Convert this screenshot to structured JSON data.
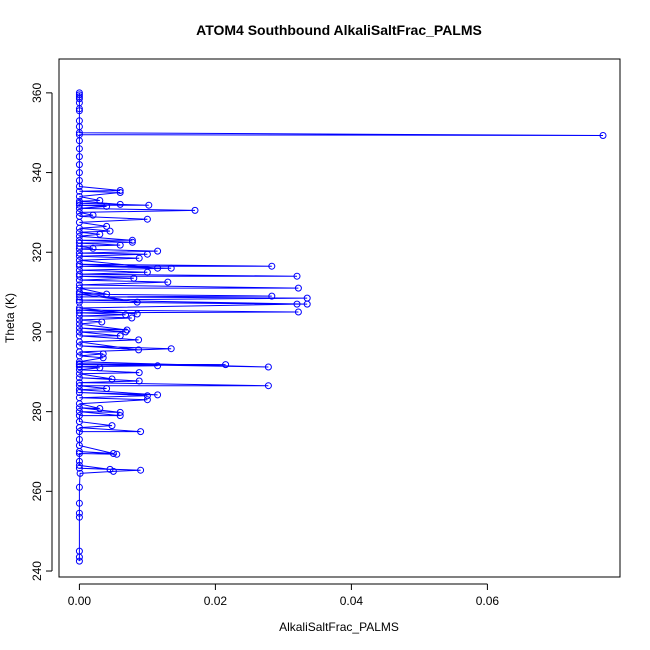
{
  "chart_data": {
    "type": "line",
    "title": "ATOM4 Southbound AlkaliSaltFrac_PALMS",
    "xlabel": "AlkaliSaltFrac_PALMS",
    "ylabel": "Theta (K)",
    "xlim": [
      -0.003,
      0.0795
    ],
    "ylim": [
      238.5,
      368.5
    ],
    "xticks": [
      0.0,
      0.02,
      0.04,
      0.06
    ],
    "xtick_labels": [
      "0.00",
      "0.02",
      "0.04",
      "0.06"
    ],
    "yticks": [
      240,
      260,
      280,
      300,
      320,
      340,
      360
    ],
    "ytick_labels": [
      "240",
      "260",
      "280",
      "300",
      "320",
      "340",
      "360"
    ],
    "grid": false,
    "legend": "none",
    "series": [
      {
        "color": "#0000ff",
        "marker": "open-circle",
        "points": [
          [
            0.0,
            242.5
          ],
          [
            0.0,
            243.5
          ],
          [
            0.0,
            245.0
          ],
          [
            0.0,
            253.5
          ],
          [
            0.0,
            254.5
          ],
          [
            0.0,
            257.0
          ],
          [
            0.0,
            261.0
          ],
          [
            0.0001,
            264.5
          ],
          [
            0.005,
            265.0
          ],
          [
            0.009,
            265.3
          ],
          [
            0.0,
            265.8
          ],
          [
            0.0045,
            265.5
          ],
          [
            0.0,
            266.5
          ],
          [
            0.0,
            267.5
          ],
          [
            0.0,
            269.5
          ],
          [
            0.0055,
            269.3
          ],
          [
            0.0,
            270.0
          ],
          [
            0.005,
            269.5
          ],
          [
            0.0,
            271.5
          ],
          [
            0.0,
            273.0
          ],
          [
            0.0,
            275.0
          ],
          [
            0.009,
            275.0
          ],
          [
            0.0,
            276.0
          ],
          [
            0.0048,
            276.5
          ],
          [
            0.0,
            277.5
          ],
          [
            0.0,
            279.0
          ],
          [
            0.006,
            279.0
          ],
          [
            0.0,
            280.0
          ],
          [
            0.006,
            279.8
          ],
          [
            0.0,
            281.0
          ],
          [
            0.003,
            280.8
          ],
          [
            0.0,
            282.0
          ],
          [
            0.01,
            283.0
          ],
          [
            0.0,
            283.5
          ],
          [
            0.01,
            284.0
          ],
          [
            0.0,
            284.8
          ],
          [
            0.0115,
            284.2
          ],
          [
            0.0,
            285.5
          ],
          [
            0.004,
            285.8
          ],
          [
            0.0,
            286.5
          ],
          [
            0.0278,
            286.5
          ],
          [
            0.0,
            287.3
          ],
          [
            0.0088,
            287.7
          ],
          [
            0.0,
            288.5
          ],
          [
            0.0048,
            288.2
          ],
          [
            0.0,
            289.5
          ],
          [
            0.0088,
            289.8
          ],
          [
            0.0,
            290.5
          ],
          [
            0.003,
            291.0
          ],
          [
            0.0,
            291.3
          ],
          [
            0.0115,
            291.5
          ],
          [
            0.0,
            291.8
          ],
          [
            0.0215,
            291.8
          ],
          [
            0.0,
            292.0
          ],
          [
            0.0278,
            291.2
          ],
          [
            0.0,
            292.5
          ],
          [
            0.0035,
            293.5
          ],
          [
            0.0,
            294.0
          ],
          [
            0.0035,
            294.5
          ],
          [
            0.0,
            295.0
          ],
          [
            0.0135,
            295.8
          ],
          [
            0.0,
            296.5
          ],
          [
            0.0087,
            295.5
          ],
          [
            0.0,
            297.5
          ],
          [
            0.0087,
            298.0
          ],
          [
            0.0,
            299.0
          ],
          [
            0.006,
            299.0
          ],
          [
            0.0,
            300.0
          ],
          [
            0.0068,
            300.0
          ],
          [
            0.0,
            301.0
          ],
          [
            0.007,
            300.5
          ],
          [
            0.0,
            302.0
          ],
          [
            0.0033,
            302.5
          ],
          [
            0.0,
            303.0
          ],
          [
            0.0077,
            303.5
          ],
          [
            0.0,
            304.0
          ],
          [
            0.0068,
            304.3
          ],
          [
            0.0,
            304.8
          ],
          [
            0.0322,
            305.0
          ],
          [
            0.0,
            305.5
          ],
          [
            0.0085,
            304.5
          ],
          [
            0.0,
            306.0
          ],
          [
            0.032,
            307.0
          ],
          [
            0.0,
            307.5
          ],
          [
            0.0335,
            307.0
          ],
          [
            0.0,
            308.0
          ],
          [
            0.0335,
            308.5
          ],
          [
            0.0,
            308.8
          ],
          [
            0.0283,
            309.0
          ],
          [
            0.0,
            309.5
          ],
          [
            0.0085,
            307.5
          ],
          [
            0.0,
            310.0
          ],
          [
            0.004,
            309.5
          ],
          [
            0.0,
            311.0
          ],
          [
            0.0322,
            311.0
          ],
          [
            0.0,
            311.8
          ],
          [
            0.013,
            312.5
          ],
          [
            0.0,
            313.0
          ],
          [
            0.008,
            313.5
          ],
          [
            0.0,
            314.0
          ],
          [
            0.032,
            314.0
          ],
          [
            0.0,
            314.5
          ],
          [
            0.01,
            315.0
          ],
          [
            0.0,
            315.5
          ],
          [
            0.0135,
            316.0
          ],
          [
            0.0,
            316.5
          ],
          [
            0.0283,
            316.5
          ],
          [
            0.0,
            317.0
          ],
          [
            0.0115,
            316.0
          ],
          [
            0.0,
            318.0
          ],
          [
            0.0088,
            318.5
          ],
          [
            0.0,
            319.0
          ],
          [
            0.01,
            319.5
          ],
          [
            0.0,
            319.8
          ],
          [
            0.0115,
            320.3
          ],
          [
            0.0,
            320.8
          ],
          [
            0.002,
            321.0
          ],
          [
            0.0,
            321.5
          ],
          [
            0.006,
            321.8
          ],
          [
            0.0,
            322.3
          ],
          [
            0.0078,
            322.5
          ],
          [
            0.0,
            323.0
          ],
          [
            0.0078,
            323.0
          ],
          [
            0.0,
            324.0
          ],
          [
            0.003,
            324.5
          ],
          [
            0.0,
            325.0
          ],
          [
            0.0045,
            325.3
          ],
          [
            0.0,
            326.0
          ],
          [
            0.004,
            326.5
          ],
          [
            0.0,
            327.5
          ],
          [
            0.01,
            328.3
          ],
          [
            0.0,
            329.0
          ],
          [
            0.002,
            329.3
          ],
          [
            0.0,
            330.0
          ],
          [
            0.017,
            330.5
          ],
          [
            0.0,
            331.0
          ],
          [
            0.004,
            331.5
          ],
          [
            0.0,
            331.8
          ],
          [
            0.0102,
            331.8
          ],
          [
            0.0,
            332.3
          ],
          [
            0.006,
            332.0
          ],
          [
            0.0,
            332.8
          ],
          [
            0.003,
            333.0
          ],
          [
            0.0,
            334.0
          ],
          [
            0.006,
            335.0
          ],
          [
            0.0,
            335.3
          ],
          [
            0.006,
            335.5
          ],
          [
            0.0,
            336.5
          ],
          [
            0.0,
            338.0
          ],
          [
            0.0,
            340.0
          ],
          [
            0.0,
            342.0
          ],
          [
            0.0,
            344.0
          ],
          [
            0.0,
            346.0
          ],
          [
            0.0,
            348.0
          ],
          [
            0.0,
            349.5
          ],
          [
            0.077,
            349.3
          ],
          [
            0.0,
            350.0
          ],
          [
            0.0,
            351.5
          ],
          [
            0.0,
            353.0
          ],
          [
            0.0,
            355.5
          ],
          [
            0.0,
            356.0
          ],
          [
            0.0,
            357.5
          ],
          [
            0.0,
            358.5
          ],
          [
            0.0,
            359.0
          ],
          [
            0.0,
            359.5
          ],
          [
            0.0,
            360.0
          ]
        ]
      }
    ]
  }
}
